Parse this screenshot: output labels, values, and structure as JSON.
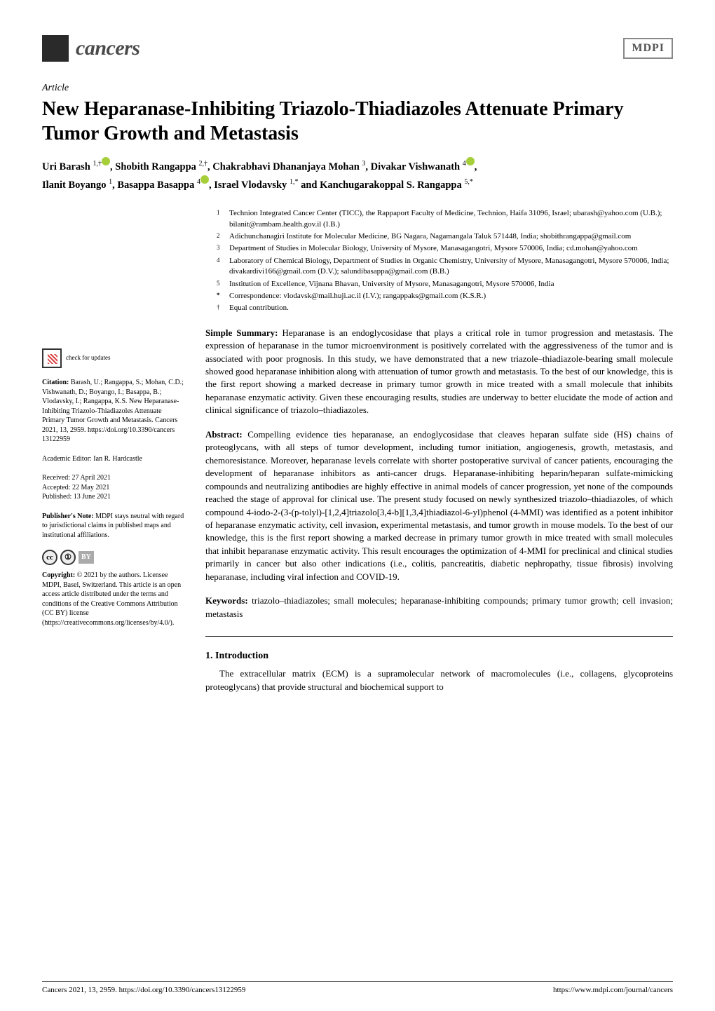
{
  "journal": {
    "name": "cancers",
    "publisher": "MDPI"
  },
  "article_type": "Article",
  "title": "New Heparanase-Inhibiting Triazolo-Thiadiazoles Attenuate Primary Tumor Growth and Metastasis",
  "authors_line1": "Uri Barash ",
  "authors_sup1": "1,†",
  "authors_line2": ", Shobith Rangappa ",
  "authors_sup2": "2,†",
  "authors_line3": ", Chakrabhavi Dhananjaya Mohan ",
  "authors_sup3": "3",
  "authors_line4": ", Divakar Vishwanath ",
  "authors_sup4": "4",
  "authors_line5": ",",
  "authors_line6": "Ilanit Boyango ",
  "authors_sup5": "1",
  "authors_line7": ", Basappa Basappa ",
  "authors_sup6": "4",
  "authors_line8": ", Israel Vlodavsky ",
  "authors_sup7": "1,*",
  "authors_line9": " and Kanchugarakoppal S. Rangappa ",
  "authors_sup8": "5,*",
  "affiliations": [
    {
      "num": "1",
      "text": "Technion Integrated Cancer Center (TICC), the Rappaport Faculty of Medicine, Technion, Haifa 31096, Israel; ubarash@yahoo.com (U.B.); bilanit@rambam.health.gov.il (I.B.)"
    },
    {
      "num": "2",
      "text": "Adichunchanagiri Institute for Molecular Medicine, BG Nagara, Nagamangala Taluk 571448, India; shobithrangappa@gmail.com"
    },
    {
      "num": "3",
      "text": "Department of Studies in Molecular Biology, University of Mysore, Manasagangotri, Mysore 570006, India; cd.mohan@yahoo.com"
    },
    {
      "num": "4",
      "text": "Laboratory of Chemical Biology, Department of Studies in Organic Chemistry, University of Mysore, Manasagangotri, Mysore 570006, India; divakardivi166@gmail.com (D.V.); salundibasappa@gmail.com (B.B.)"
    },
    {
      "num": "5",
      "text": "Institution of Excellence, Vijnana Bhavan, University of Mysore, Manasagangotri, Mysore 570006, India"
    },
    {
      "num": "*",
      "text": "Correspondence: vlodavsk@mail.huji.ac.il (I.V.); rangappaks@gmail.com (K.S.R.)"
    },
    {
      "num": "†",
      "text": "Equal contribution."
    }
  ],
  "simple_summary": {
    "label": "Simple Summary:",
    "text": " Heparanase is an endoglycosidase that plays a critical role in tumor progression and metastasis. The expression of heparanase in the tumor microenvironment is positively correlated with the aggressiveness of the tumor and is associated with poor prognosis. In this study, we have demonstrated that a new triazole–thiadiazole-bearing small molecule showed good heparanase inhibition along with attenuation of tumor growth and metastasis. To the best of our knowledge, this is the first report showing a marked decrease in primary tumor growth in mice treated with a small molecule that inhibits heparanase enzymatic activity. Given these encouraging results, studies are underway to better elucidate the mode of action and clinical significance of triazolo–thiadiazoles."
  },
  "abstract": {
    "label": "Abstract:",
    "text": " Compelling evidence ties heparanase, an endoglycosidase that cleaves heparan sulfate side (HS) chains of proteoglycans, with all steps of tumor development, including tumor initiation, angiogenesis, growth, metastasis, and chemoresistance. Moreover, heparanase levels correlate with shorter postoperative survival of cancer patients, encouraging the development of heparanase inhibitors as anti-cancer drugs. Heparanase-inhibiting heparin/heparan sulfate-mimicking compounds and neutralizing antibodies are highly effective in animal models of cancer progression, yet none of the compounds reached the stage of approval for clinical use. The present study focused on newly synthesized triazolo–thiadiazoles, of which compound 4-iodo-2-(3-(p-tolyl)-[1,2,4]triazolo[3,4-b][1,3,4]thiadiazol-6-yl)phenol (4-MMI) was identified as a potent inhibitor of heparanase enzymatic activity, cell invasion, experimental metastasis, and tumor growth in mouse models. To the best of our knowledge, this is the first report showing a marked decrease in primary tumor growth in mice treated with small molecules that inhibit heparanase enzymatic activity. This result encourages the optimization of 4-MMI for preclinical and clinical studies primarily in cancer but also other indications (i.e., colitis, pancreatitis, diabetic nephropathy, tissue fibrosis) involving heparanase, including viral infection and COVID-19."
  },
  "keywords": {
    "label": "Keywords:",
    "text": " triazolo–thiadiazoles; small molecules; heparanase-inhibiting compounds; primary tumor growth; cell invasion; metastasis"
  },
  "sidebar": {
    "check_updates": "check for\nupdates",
    "citation_label": "Citation:",
    "citation": " Barash, U.; Rangappa, S.; Mohan, C.D.; Vishwanath, D.; Boyango, I.; Basappa, B.; Vlodavsky, I.; Rangappa, K.S. New Heparanase-Inhibiting Triazolo-Thiadiazoles Attenuate Primary Tumor Growth and Metastasis. Cancers 2021, 13, 2959. https://doi.org/10.3390/cancers 13122959",
    "editor": "Academic Editor: Ian R. Hardcastle",
    "received": "Received: 27 April 2021",
    "accepted": "Accepted: 22 May 2021",
    "published": "Published: 13 June 2021",
    "pubnote_label": "Publisher's Note:",
    "pubnote": " MDPI stays neutral with regard to jurisdictional claims in published maps and institutional affiliations.",
    "copyright_label": "Copyright:",
    "copyright": " © 2021 by the authors. Licensee MDPI, Basel, Switzerland. This article is an open access article distributed under the terms and conditions of the Creative Commons Attribution (CC BY) license (https://creativecommons.org/licenses/by/4.0/)."
  },
  "intro": {
    "heading": "1. Introduction",
    "text": "The extracellular matrix (ECM) is a supramolecular network of macromolecules (i.e., collagens, glycoproteins proteoglycans) that provide structural and biochemical support to"
  },
  "footer": {
    "left": "Cancers 2021, 13, 2959. https://doi.org/10.3390/cancers13122959",
    "right": "https://www.mdpi.com/journal/cancers"
  },
  "styling": {
    "page_bg": "#ffffff",
    "text_color": "#000000",
    "title_fontsize": 28,
    "body_fontsize": 13,
    "sidebar_fontsize": 10,
    "orcid_color": "#a6ce39",
    "journal_name_color": "#4a4a4a"
  }
}
